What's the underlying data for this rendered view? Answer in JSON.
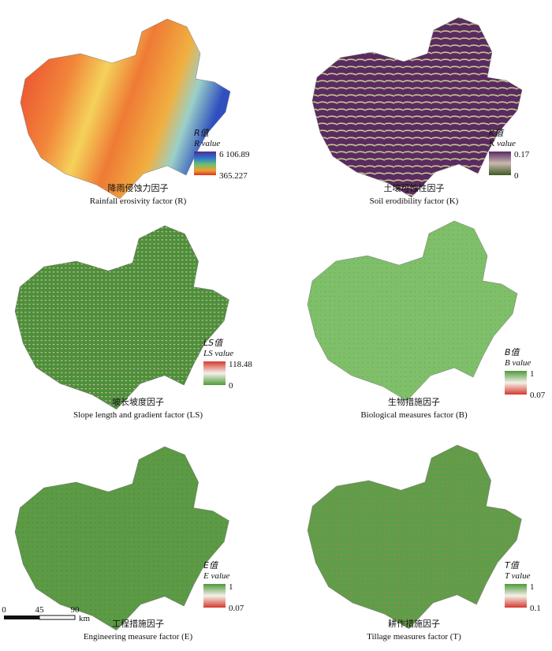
{
  "panels": [
    {
      "legend": {
        "title_cn": "R值",
        "title_en": "R value",
        "max": "6 106.89",
        "min": "365.227"
      },
      "caption_cn": "降雨侵蚀力因子",
      "caption_en": "Rainfall erosivity factor (R)"
    },
    {
      "legend": {
        "title_cn": "K值",
        "title_en": "K value",
        "max": "0.17",
        "min": "0"
      },
      "caption_cn": "土壤可蚀性因子",
      "caption_en": "Soil erodibility factor (K)"
    },
    {
      "legend": {
        "title_cn": "LS值",
        "title_en": "LS value",
        "max": "118.48",
        "min": "0"
      },
      "caption_cn": "坡长坡度因子",
      "caption_en": "Slope length and gradient factor (LS)"
    },
    {
      "legend": {
        "title_cn": "B值",
        "title_en": "B value",
        "max": "1",
        "min": "0.07"
      },
      "caption_cn": "生物措施因子",
      "caption_en": "Biological measures factor (B)"
    },
    {
      "legend": {
        "title_cn": "E值",
        "title_en": "E value",
        "max": "1",
        "min": "0.07"
      },
      "caption_cn": "工程措施因子",
      "caption_en": "Engineering measure factor (E)"
    },
    {
      "legend": {
        "title_cn": "T值",
        "title_en": "T value",
        "max": "1",
        "min": "0.1"
      },
      "caption_cn": "耕作措施因子",
      "caption_en": "Tillage measures factor (T)"
    }
  ],
  "scale_bar": {
    "labels": [
      "0",
      "45",
      "90"
    ],
    "unit": "km"
  }
}
